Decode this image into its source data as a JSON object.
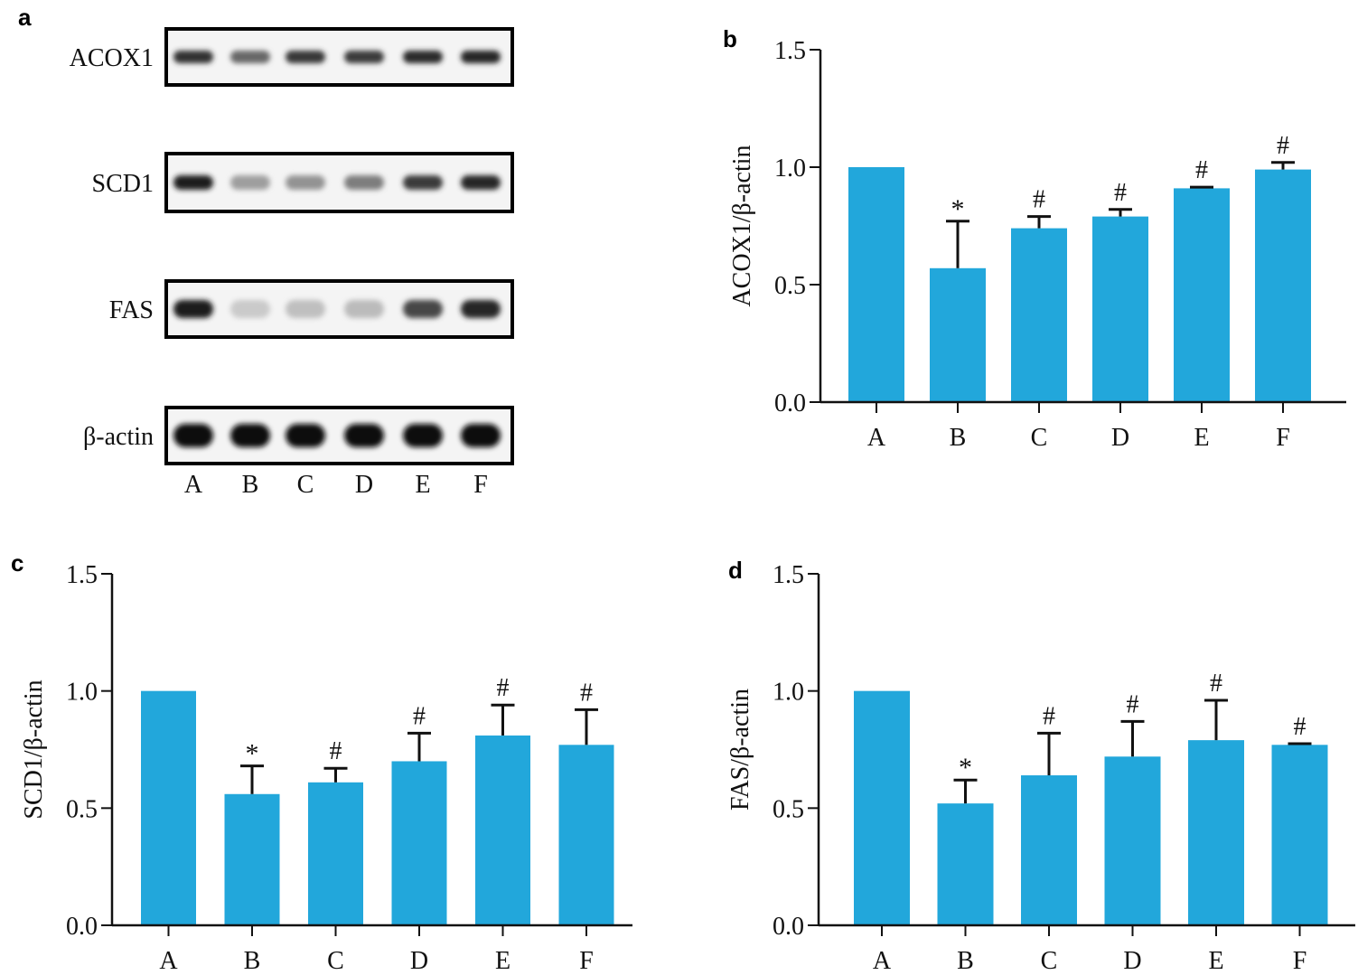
{
  "panel_letters": {
    "a": "a",
    "b": "b",
    "c": "c",
    "d": "d"
  },
  "blot": {
    "lane_labels": [
      "A",
      "B",
      "C",
      "D",
      "E",
      "F"
    ],
    "rows": [
      {
        "label": "ACOX1",
        "intensities": [
          0.85,
          0.6,
          0.82,
          0.8,
          0.88,
          0.9
        ]
      },
      {
        "label": "SCD1",
        "intensities": [
          0.95,
          0.35,
          0.4,
          0.5,
          0.8,
          0.9
        ]
      },
      {
        "label": "FAS",
        "intensities": [
          0.95,
          0.15,
          0.2,
          0.22,
          0.75,
          0.9
        ]
      },
      {
        "label": "β-actin",
        "intensities": [
          1.0,
          1.0,
          1.0,
          1.0,
          1.0,
          1.0
        ]
      }
    ]
  },
  "colors": {
    "bar": "#22a7db",
    "axis": "#111111",
    "band": "#111111"
  },
  "chart_data": [
    {
      "panel": "b",
      "type": "bar",
      "categories": [
        "A",
        "B",
        "C",
        "D",
        "E",
        "F"
      ],
      "values": [
        1.0,
        0.57,
        0.74,
        0.79,
        0.91,
        0.99
      ],
      "errors": [
        0,
        0.2,
        0.05,
        0.03,
        0.005,
        0.03
      ],
      "annotations": [
        "",
        "*",
        "#",
        "#",
        "#",
        "#"
      ],
      "ylabel": "ACOX1/β-actin",
      "ylim": [
        0,
        1.5
      ],
      "yticks": [
        "0.0",
        "0.5",
        "1.0",
        "1.5"
      ]
    },
    {
      "panel": "c",
      "type": "bar",
      "categories": [
        "A",
        "B",
        "C",
        "D",
        "E",
        "F"
      ],
      "values": [
        1.0,
        0.56,
        0.61,
        0.7,
        0.81,
        0.77
      ],
      "errors": [
        0,
        0.12,
        0.06,
        0.12,
        0.13,
        0.15
      ],
      "annotations": [
        "",
        "*",
        "#",
        "#",
        "#",
        "#"
      ],
      "ylabel": "SCD1/β-actin",
      "ylim": [
        0,
        1.5
      ],
      "yticks": [
        "0.0",
        "0.5",
        "1.0",
        "1.5"
      ]
    },
    {
      "panel": "d",
      "type": "bar",
      "categories": [
        "A",
        "B",
        "C",
        "D",
        "E",
        "F"
      ],
      "values": [
        1.0,
        0.52,
        0.64,
        0.72,
        0.79,
        0.77
      ],
      "errors": [
        0,
        0.1,
        0.18,
        0.15,
        0.17,
        0.005
      ],
      "annotations": [
        "",
        "*",
        "#",
        "#",
        "#",
        "#"
      ],
      "ylabel": "FAS/β-actin",
      "ylim": [
        0,
        1.5
      ],
      "yticks": [
        "0.0",
        "0.5",
        "1.0",
        "1.5"
      ]
    }
  ]
}
